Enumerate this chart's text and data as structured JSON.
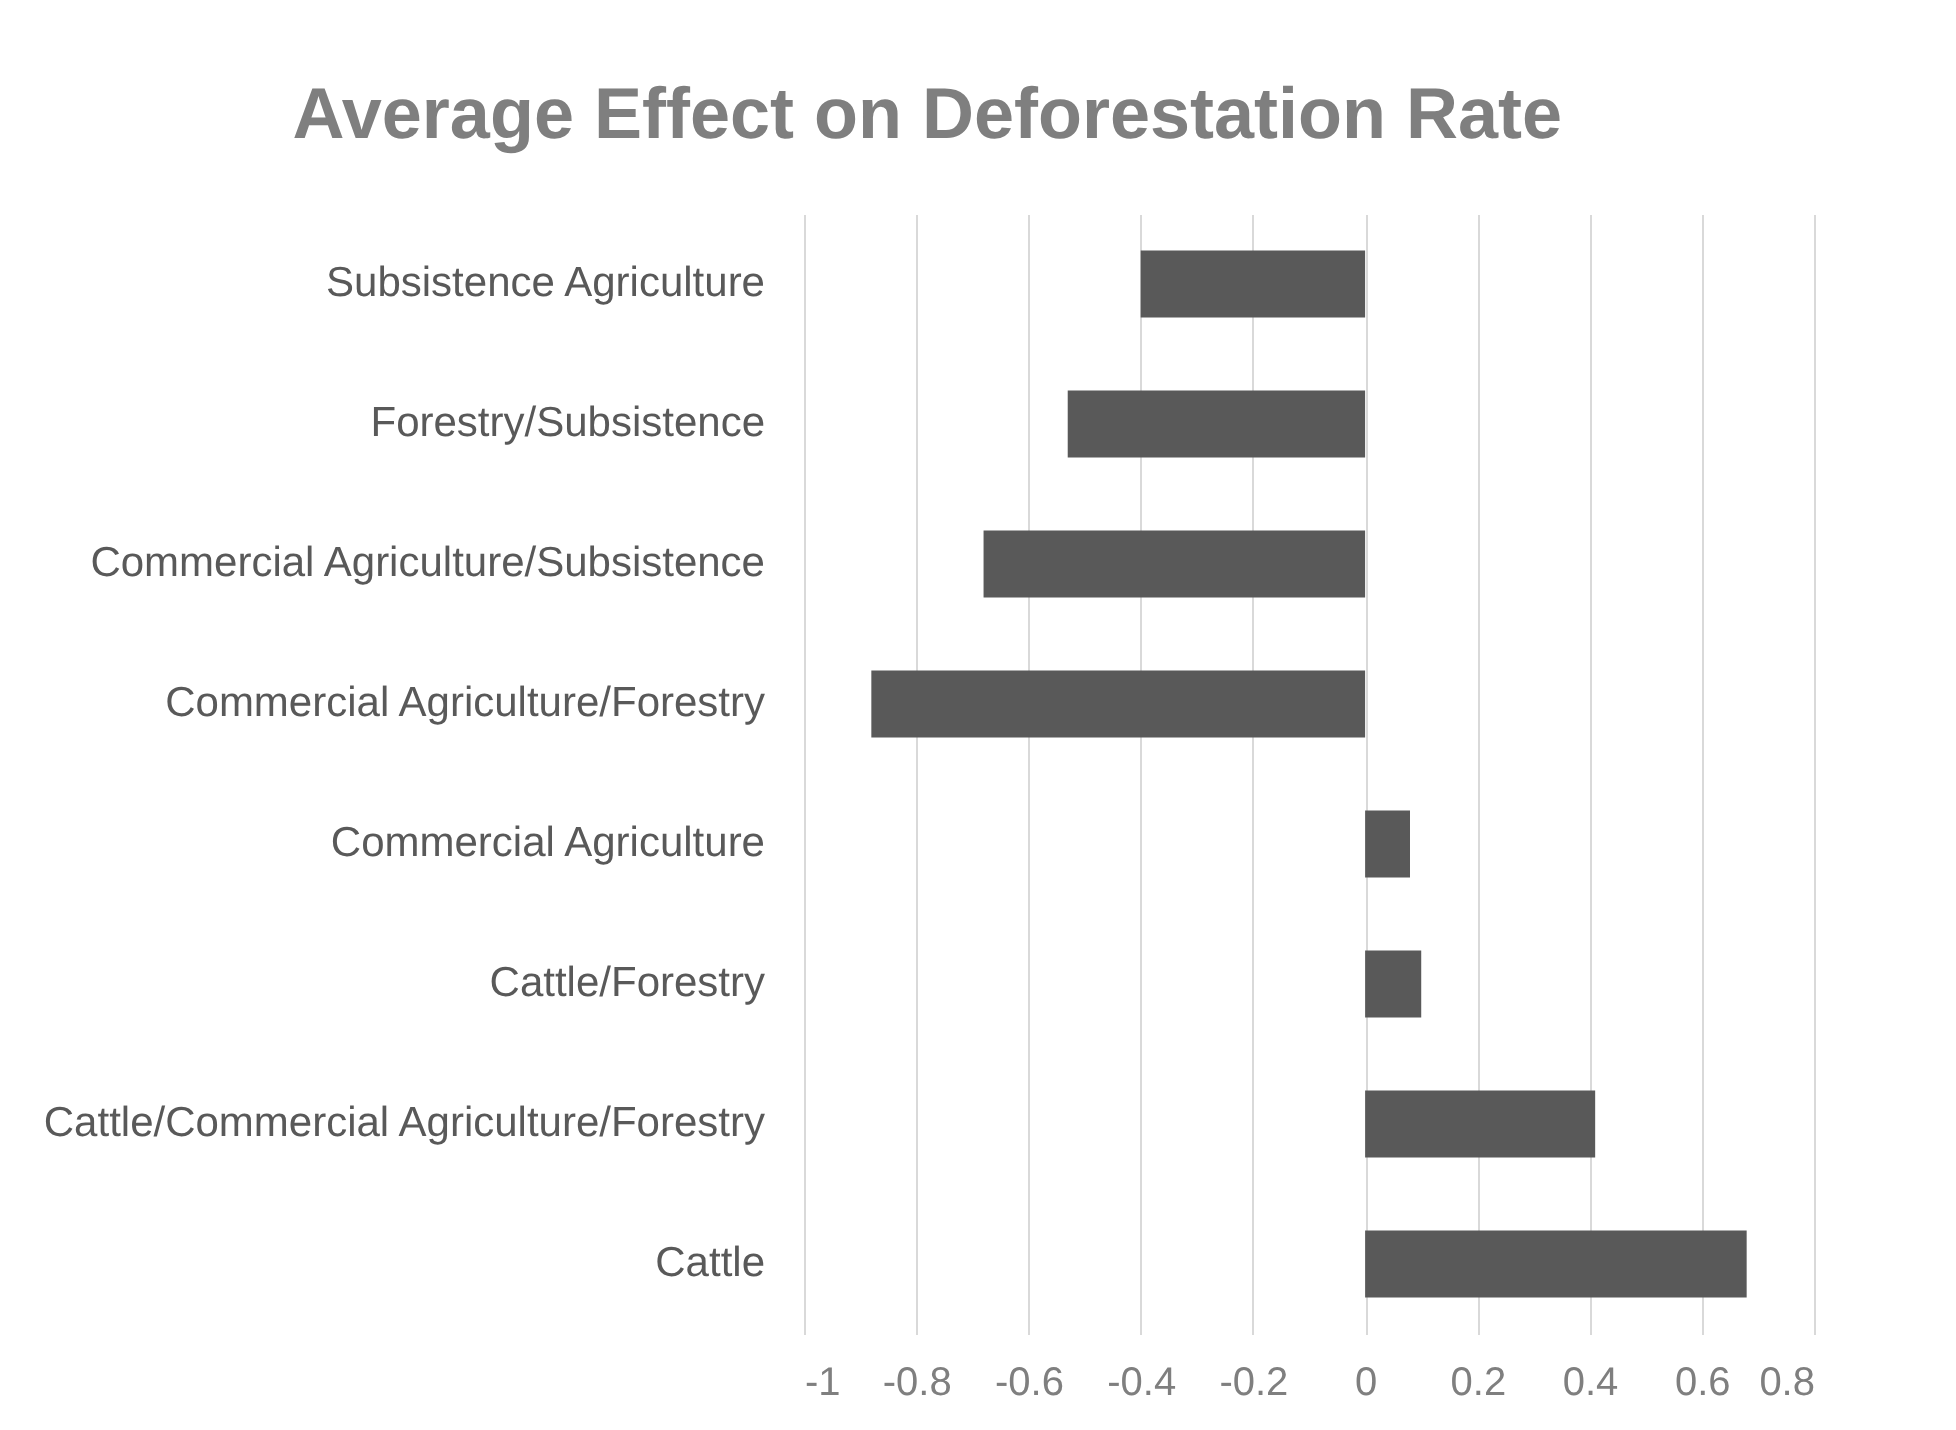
{
  "chart_data": {
    "type": "bar",
    "orientation": "horizontal",
    "title": "Average Effect on Deforestation Rate",
    "categories": [
      "Subsistence Agriculture",
      "Forestry/Subsistence",
      "Commercial Agriculture/Subsistence",
      "Commercial Agriculture/Forestry",
      "Commercial Agriculture",
      "Cattle/Forestry",
      "Cattle/Commercial Agriculture/Forestry",
      "Cattle"
    ],
    "values": [
      -0.4,
      -0.53,
      -0.68,
      -0.88,
      0.08,
      0.1,
      0.41,
      0.68
    ],
    "color": "#595959",
    "xlim": [
      -1,
      0.8
    ],
    "xticks": [
      -1,
      -0.8,
      -0.6,
      -0.4,
      -0.2,
      0,
      0.2,
      0.4,
      0.6,
      0.8
    ],
    "grid": "x"
  }
}
